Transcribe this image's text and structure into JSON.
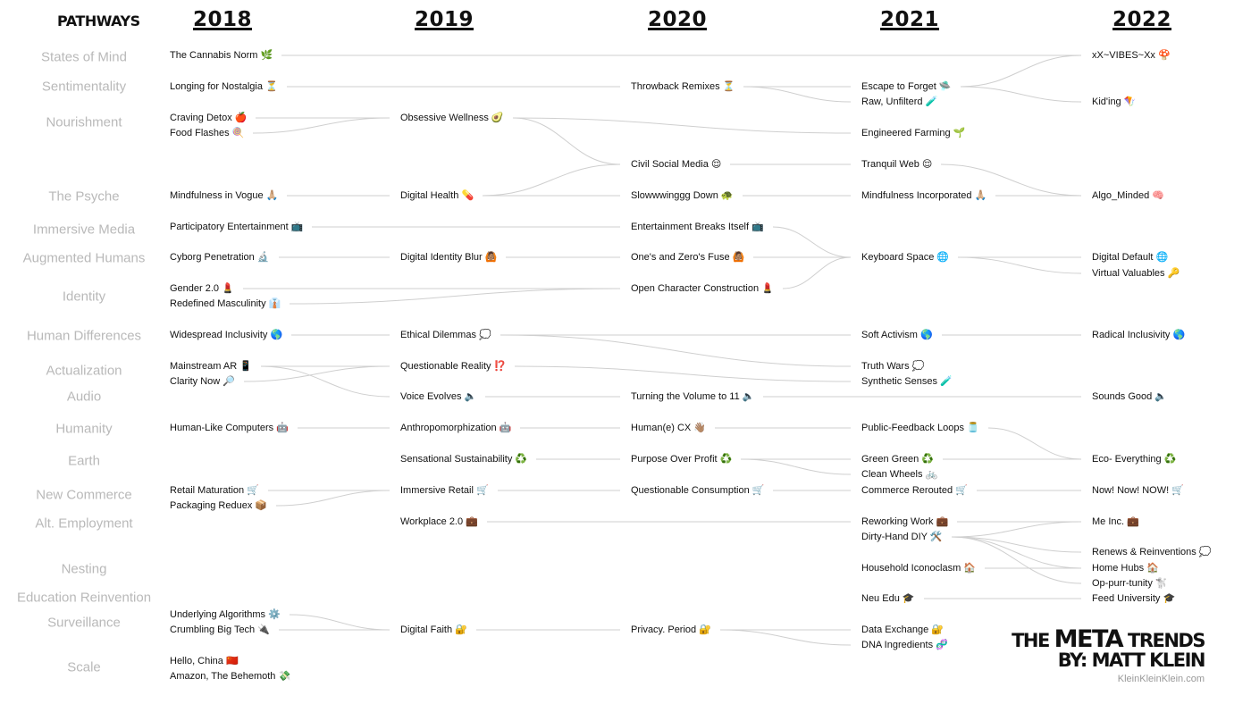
{
  "header": {
    "pathways_label": "PATHWAYS",
    "years": [
      "2018",
      "2019",
      "2020",
      "2021",
      "2022"
    ]
  },
  "pathways": [
    "States of Mind",
    "Sentimentality",
    "Nourishment",
    "The Psyche",
    "Immersive Media",
    "Augmented Humans",
    "Identity",
    "Human Differences",
    "Actualization",
    "Audio",
    "Humanity",
    "Earth",
    "New Commerce",
    "Alt. Employment",
    "Nesting",
    "Education Reinvention",
    "Surveillance",
    "Scale"
  ],
  "trends": [
    {
      "id": "a1",
      "col": 0,
      "text": "The Cannabis Norm 🌿"
    },
    {
      "id": "a2",
      "col": 0,
      "text": "Longing for Nostalgia ⏳"
    },
    {
      "id": "a3",
      "col": 0,
      "text": "Craving Detox 🍎"
    },
    {
      "id": "a4",
      "col": 0,
      "text": "Food Flashes 🍭"
    },
    {
      "id": "a5",
      "col": 0,
      "text": "Mindfulness in Vogue 🙏🏼"
    },
    {
      "id": "a6",
      "col": 0,
      "text": "Participatory Entertainment 📺"
    },
    {
      "id": "a7",
      "col": 0,
      "text": "Cyborg Penetration 🔬"
    },
    {
      "id": "a8",
      "col": 0,
      "text": "Gender 2.0 💄"
    },
    {
      "id": "a9",
      "col": 0,
      "text": "Redefined Masculinity 👔"
    },
    {
      "id": "a10",
      "col": 0,
      "text": "Widespread Inclusivity 🌎"
    },
    {
      "id": "a11",
      "col": 0,
      "text": "Mainstream AR 📱"
    },
    {
      "id": "a12",
      "col": 0,
      "text": "Clarity Now 🔎"
    },
    {
      "id": "a13",
      "col": 0,
      "text": "Human-Like Computers 🤖"
    },
    {
      "id": "a14",
      "col": 0,
      "text": "Retail Maturation 🛒"
    },
    {
      "id": "a15",
      "col": 0,
      "text": "Packaging Reduex 📦"
    },
    {
      "id": "a16",
      "col": 0,
      "text": "Underlying Algorithms ⚙️"
    },
    {
      "id": "a17",
      "col": 0,
      "text": "Crumbling Big Tech 🔌"
    },
    {
      "id": "a18",
      "col": 0,
      "text": "Hello, China 🇨🇳"
    },
    {
      "id": "a19",
      "col": 0,
      "text": "Amazon, The Behemoth 💸"
    },
    {
      "id": "b1",
      "col": 1,
      "text": "Obsessive Wellness 🥑"
    },
    {
      "id": "b2",
      "col": 1,
      "text": "Digital Health 💊"
    },
    {
      "id": "b3",
      "col": 1,
      "text": "Digital Identity Blur 🙆🏽"
    },
    {
      "id": "b4",
      "col": 1,
      "text": "Ethical Dilemmas 💭"
    },
    {
      "id": "b5",
      "col": 1,
      "text": "Questionable Reality ⁉️"
    },
    {
      "id": "b6",
      "col": 1,
      "text": "Voice Evolves 🔈"
    },
    {
      "id": "b7",
      "col": 1,
      "text": "Anthropomorphization 🤖"
    },
    {
      "id": "b8",
      "col": 1,
      "text": "Sensational Sustainability ♻️"
    },
    {
      "id": "b9",
      "col": 1,
      "text": "Immersive Retail 🛒"
    },
    {
      "id": "b10",
      "col": 1,
      "text": "Workplace 2.0 💼"
    },
    {
      "id": "b11",
      "col": 1,
      "text": "Digital Faith 🔐"
    },
    {
      "id": "c1",
      "col": 2,
      "text": "Throwback Remixes ⏳"
    },
    {
      "id": "c2",
      "col": 2,
      "text": "Civil Social Media 😌"
    },
    {
      "id": "c3",
      "col": 2,
      "text": "Slowwwinggg Down 🐢"
    },
    {
      "id": "c4",
      "col": 2,
      "text": "Entertainment Breaks Itself 📺"
    },
    {
      "id": "c5",
      "col": 2,
      "text": "One's and Zero's Fuse 🙆🏽"
    },
    {
      "id": "c6",
      "col": 2,
      "text": "Open Character Construction 💄"
    },
    {
      "id": "c7",
      "col": 2,
      "text": "Turning the Volume to 11 🔈"
    },
    {
      "id": "c8",
      "col": 2,
      "text": "Human(e) CX 👋🏽"
    },
    {
      "id": "c9",
      "col": 2,
      "text": "Purpose Over Profit ♻️"
    },
    {
      "id": "c10",
      "col": 2,
      "text": "Questionable Consumption 🛒"
    },
    {
      "id": "c11",
      "col": 2,
      "text": "Privacy. Period 🔐"
    },
    {
      "id": "d1",
      "col": 3,
      "text": "Escape to Forget 🛸"
    },
    {
      "id": "d2",
      "col": 3,
      "text": "Raw, Unfilterd 🧪"
    },
    {
      "id": "d3",
      "col": 3,
      "text": "Engineered Farming 🌱"
    },
    {
      "id": "d4",
      "col": 3,
      "text": "Tranquil Web 😌"
    },
    {
      "id": "d5",
      "col": 3,
      "text": "Mindfulness Incorporated 🙏🏼"
    },
    {
      "id": "d6",
      "col": 3,
      "text": "Keyboard Space 🌐"
    },
    {
      "id": "d7",
      "col": 3,
      "text": "Soft Activism 🌎"
    },
    {
      "id": "d8",
      "col": 3,
      "text": "Truth Wars 💭"
    },
    {
      "id": "d9",
      "col": 3,
      "text": "Synthetic Senses 🧪"
    },
    {
      "id": "d10",
      "col": 3,
      "text": "Public-Feedback Loops 🫙"
    },
    {
      "id": "d11",
      "col": 3,
      "text": "Green Green ♻️"
    },
    {
      "id": "d12",
      "col": 3,
      "text": "Clean Wheels 🚲"
    },
    {
      "id": "d13",
      "col": 3,
      "text": "Commerce Rerouted 🛒"
    },
    {
      "id": "d14",
      "col": 3,
      "text": "Reworking Work 💼"
    },
    {
      "id": "d15",
      "col": 3,
      "text": "Dirty-Hand DIY 🛠️"
    },
    {
      "id": "d16",
      "col": 3,
      "text": "Household Iconoclasm 🏠"
    },
    {
      "id": "d17",
      "col": 3,
      "text": "Neu Edu 🎓"
    },
    {
      "id": "d18",
      "col": 3,
      "text": "Data Exchange 🔐"
    },
    {
      "id": "d19",
      "col": 3,
      "text": "DNA Ingredients 🧬"
    },
    {
      "id": "e1",
      "col": 4,
      "text": "xX~VIBES~Xx 🍄"
    },
    {
      "id": "e2",
      "col": 4,
      "text": "Kid'ing 🪁"
    },
    {
      "id": "e3",
      "col": 4,
      "text": "Algo_Minded 🧠"
    },
    {
      "id": "e4",
      "col": 4,
      "text": "Digital Default 🌐"
    },
    {
      "id": "e5",
      "col": 4,
      "text": "Virtual Valuables 🔑"
    },
    {
      "id": "e6",
      "col": 4,
      "text": "Radical Inclusivity 🌎"
    },
    {
      "id": "e7",
      "col": 4,
      "text": "Sounds Good 🔈"
    },
    {
      "id": "e8",
      "col": 4,
      "text": "Eco- Everything ♻️"
    },
    {
      "id": "e9",
      "col": 4,
      "text": "Now! Now! NOW! 🛒"
    },
    {
      "id": "e10",
      "col": 4,
      "text": "Me Inc. 💼"
    },
    {
      "id": "e11",
      "col": 4,
      "text": "Renews & Reinventions 💭"
    },
    {
      "id": "e12",
      "col": 4,
      "text": "Home Hubs 🏠"
    },
    {
      "id": "e13",
      "col": 4,
      "text": "Op-purr-tunity 🐩"
    },
    {
      "id": "e14",
      "col": 4,
      "text": "Feed University 🎓"
    }
  ],
  "links": [
    [
      "a1",
      "e1"
    ],
    [
      "a2",
      "c1"
    ],
    [
      "c1",
      "d1"
    ],
    [
      "c1",
      "d2"
    ],
    [
      "d1",
      "e1"
    ],
    [
      "d1",
      "e2"
    ],
    [
      "a3",
      "b1"
    ],
    [
      "a4",
      "b1"
    ],
    [
      "b1",
      "d3"
    ],
    [
      "b1",
      "c2"
    ],
    [
      "b2",
      "c2"
    ],
    [
      "c2",
      "d4"
    ],
    [
      "d4",
      "e3"
    ],
    [
      "a5",
      "b2"
    ],
    [
      "b2",
      "c3"
    ],
    [
      "c3",
      "d5"
    ],
    [
      "d5",
      "e3"
    ],
    [
      "a6",
      "c4"
    ],
    [
      "c4",
      "d6"
    ],
    [
      "a7",
      "b3"
    ],
    [
      "b3",
      "c5"
    ],
    [
      "c5",
      "d6"
    ],
    [
      "c6",
      "d6"
    ],
    [
      "a8",
      "c6"
    ],
    [
      "a9",
      "c6"
    ],
    [
      "d6",
      "e4"
    ],
    [
      "d6",
      "e5"
    ],
    [
      "a10",
      "b4"
    ],
    [
      "b4",
      "d7"
    ],
    [
      "b4",
      "d8"
    ],
    [
      "d7",
      "e6"
    ],
    [
      "a11",
      "b5"
    ],
    [
      "a12",
      "b5"
    ],
    [
      "a11",
      "b6"
    ],
    [
      "b5",
      "d9"
    ],
    [
      "b6",
      "c7"
    ],
    [
      "c7",
      "e7"
    ],
    [
      "a13",
      "b7"
    ],
    [
      "b7",
      "c8"
    ],
    [
      "c8",
      "d10"
    ],
    [
      "d10",
      "e8"
    ],
    [
      "b8",
      "c9"
    ],
    [
      "c9",
      "d11"
    ],
    [
      "c9",
      "d12"
    ],
    [
      "d11",
      "e8"
    ],
    [
      "a14",
      "b9"
    ],
    [
      "a15",
      "b9"
    ],
    [
      "b9",
      "c10"
    ],
    [
      "c10",
      "d13"
    ],
    [
      "d13",
      "e9"
    ],
    [
      "b10",
      "d14"
    ],
    [
      "d14",
      "e10"
    ],
    [
      "d15",
      "e10"
    ],
    [
      "d15",
      "e11"
    ],
    [
      "d15",
      "e12"
    ],
    [
      "d15",
      "e13"
    ],
    [
      "d16",
      "e12"
    ],
    [
      "d17",
      "e14"
    ],
    [
      "a16",
      "b11"
    ],
    [
      "a17",
      "b11"
    ],
    [
      "b11",
      "c11"
    ],
    [
      "c11",
      "d18"
    ],
    [
      "c11",
      "d19"
    ]
  ],
  "branding": {
    "line1_a": "THE ",
    "line1_b": "META",
    "line1_c": " TRENDS",
    "line2": "BY: MATT KLEIN",
    "site": "KleinKleinKlein.com"
  }
}
